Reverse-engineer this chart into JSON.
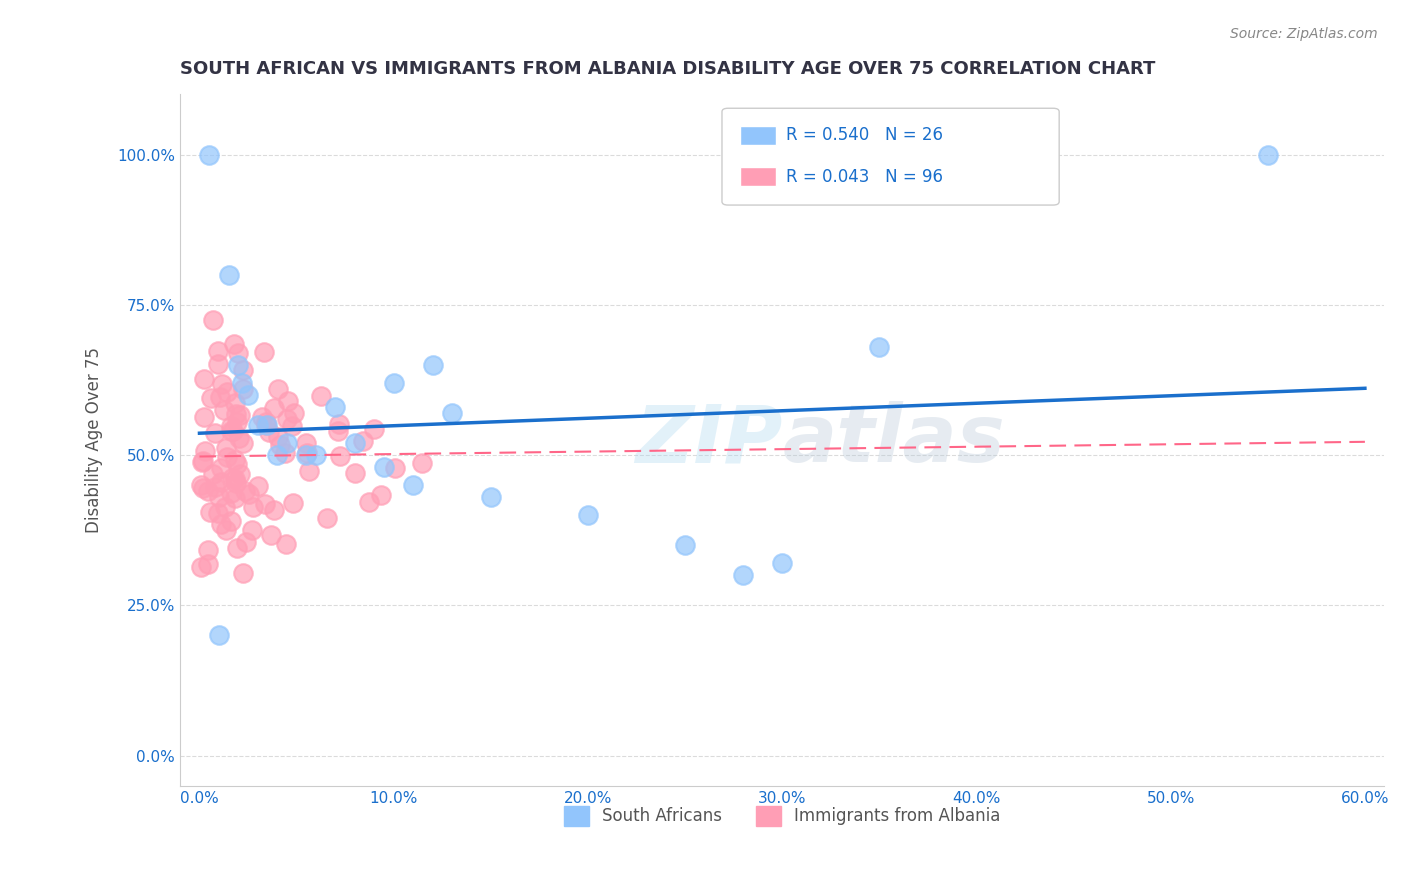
{
  "title": "SOUTH AFRICAN VS IMMIGRANTS FROM ALBANIA DISABILITY AGE OVER 75 CORRELATION CHART",
  "source": "Source: ZipAtlas.com",
  "xlabel_vals": [
    0.0,
    10.0,
    20.0,
    30.0,
    40.0,
    50.0,
    60.0
  ],
  "ylabel_vals": [
    0.0,
    25.0,
    50.0,
    75.0,
    100.0
  ],
  "ylabel_label": "Disability Age Over 75",
  "legend_labels": [
    "South Africans",
    "Immigrants from Albania"
  ],
  "R_blue": 0.54,
  "N_blue": 26,
  "R_pink": 0.043,
  "N_pink": 96,
  "blue_color": "#92C5FC",
  "pink_color": "#FF9EB5",
  "blue_line_color": "#1A6FCC",
  "pink_line_color": "#FF6688",
  "title_color": "#333344",
  "axis_label_color": "#555555",
  "legend_text_color": "#1A6FCC",
  "watermark_zip": "ZIP",
  "watermark_atlas": "atlas",
  "background_color": "#FFFFFF"
}
